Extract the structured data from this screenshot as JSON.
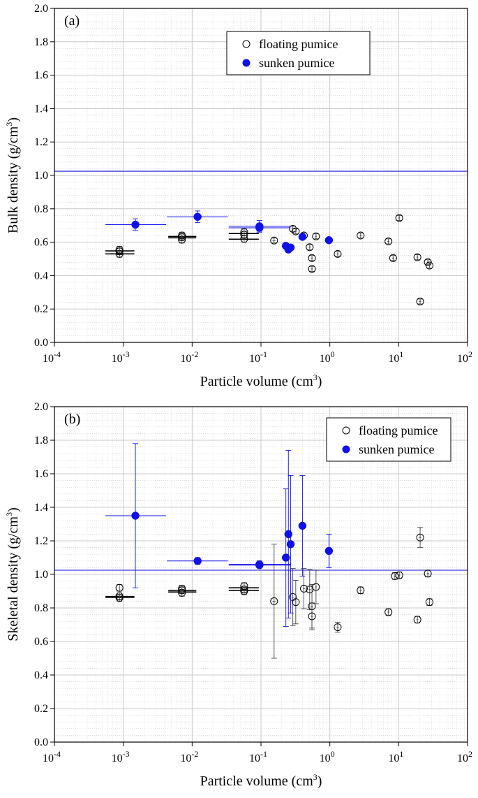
{
  "chart_data": [
    {
      "type": "scatter",
      "panel_label": "(a)",
      "title": "",
      "xlabel": "Particle volume (cm",
      "xlabel_sup": "3",
      "xlabel_close": ")",
      "ylabel": "Bulk density (g/cm",
      "ylabel_sup": "3",
      "ylabel_close": ")",
      "xscale": "log",
      "xlim": [
        0.0001,
        100
      ],
      "ylim": [
        0,
        2.0
      ],
      "x_tick_base": "10",
      "x_tick_exponents": [
        "-4",
        "-3",
        "-2",
        "-1",
        "0",
        "1",
        "2"
      ],
      "y_ticks": [
        "0.0",
        "0.2",
        "0.4",
        "0.6",
        "0.8",
        "1.0",
        "1.2",
        "1.4",
        "1.6",
        "1.8",
        "2.0"
      ],
      "grid": true,
      "reference_line_y": 1.025,
      "legend_position": "top-center",
      "series": [
        {
          "name": "floating pumice",
          "marker": "open-circle",
          "color": "#000000",
          "points": [
            {
              "x": 0.00088,
              "y": 0.53,
              "yerr": 0.02
            },
            {
              "x": 0.00088,
              "y": 0.545,
              "yerr": 0.02
            },
            {
              "x": 0.00088,
              "y": 0.555,
              "yerr": 0.02
            },
            {
              "x": 0.0071,
              "y": 0.615,
              "yerr": 0.02
            },
            {
              "x": 0.0071,
              "y": 0.63,
              "yerr": 0.02
            },
            {
              "x": 0.0071,
              "y": 0.64,
              "yerr": 0.02
            },
            {
              "x": 0.057,
              "y": 0.62,
              "yerr": 0.02
            },
            {
              "x": 0.057,
              "y": 0.645,
              "yerr": 0.02
            },
            {
              "x": 0.057,
              "y": 0.66,
              "yerr": 0.02
            },
            {
              "x": 0.155,
              "y": 0.61,
              "yerr": 0.015,
              "xerr": 0.008
            },
            {
              "x": 0.29,
              "y": 0.68,
              "yerr": 0.015,
              "xerr": 0.012
            },
            {
              "x": 0.32,
              "y": 0.665,
              "yerr": 0.015,
              "xerr": 0.012
            },
            {
              "x": 0.42,
              "y": 0.64,
              "yerr": 0.015,
              "xerr": 0.015
            },
            {
              "x": 0.51,
              "y": 0.57,
              "yerr": 0.015,
              "xerr": 0.018
            },
            {
              "x": 0.55,
              "y": 0.505,
              "yerr": 0.015,
              "xerr": 0.02
            },
            {
              "x": 0.55,
              "y": 0.44,
              "yerr": 0.015,
              "xerr": 0.02
            },
            {
              "x": 0.63,
              "y": 0.635,
              "yerr": 0.015,
              "xerr": 0.02
            },
            {
              "x": 1.3,
              "y": 0.53,
              "yerr": 0.015,
              "xerr": 0.05
            },
            {
              "x": 2.8,
              "y": 0.64,
              "yerr": 0.015,
              "xerr": 0.1
            },
            {
              "x": 7.1,
              "y": 0.605,
              "yerr": 0.015,
              "xerr": 0.25
            },
            {
              "x": 8.3,
              "y": 0.505,
              "yerr": 0.015,
              "xerr": 0.3
            },
            {
              "x": 10.2,
              "y": 0.745,
              "yerr": 0.015,
              "xerr": 0.35
            },
            {
              "x": 18.7,
              "y": 0.51,
              "yerr": 0.015,
              "xerr": 0.6
            },
            {
              "x": 20.5,
              "y": 0.245,
              "yerr": 0.015,
              "xerr": 0.7
            },
            {
              "x": 26.5,
              "y": 0.48,
              "yerr": 0.015,
              "xerr": 0.9
            },
            {
              "x": 28.0,
              "y": 0.46,
              "yerr": 0.015,
              "xerr": 0.9
            }
          ],
          "group_bars": [
            {
              "x": 0.00088,
              "y": 0.53,
              "xlo": 0.00055,
              "xhi": 0.00145
            },
            {
              "x": 0.00088,
              "y": 0.548,
              "xlo": 0.00055,
              "xhi": 0.00145
            },
            {
              "x": 0.0071,
              "y": 0.626,
              "xlo": 0.0045,
              "xhi": 0.0115
            },
            {
              "x": 0.0071,
              "y": 0.634,
              "xlo": 0.0045,
              "xhi": 0.0115
            },
            {
              "x": 0.057,
              "y": 0.618,
              "xlo": 0.034,
              "xhi": 0.093
            },
            {
              "x": 0.057,
              "y": 0.652,
              "xlo": 0.034,
              "xhi": 0.093
            }
          ]
        },
        {
          "name": "sunken pumice",
          "marker": "filled-circle",
          "color": "#1010e8",
          "points": [
            {
              "x": 0.0015,
              "y": 0.705,
              "yerr": 0.035,
              "xlo": 0.00055,
              "xhi": 0.0042
            },
            {
              "x": 0.012,
              "y": 0.752,
              "yerr": 0.035,
              "xlo": 0.0043,
              "xhi": 0.033
            },
            {
              "x": 0.095,
              "y": 0.695,
              "yerr": 0.035,
              "xlo": 0.034,
              "xhi": 0.27
            },
            {
              "x": 0.095,
              "y": 0.686,
              "yerr": 0.02,
              "xlo": 0.034,
              "xhi": 0.27
            },
            {
              "x": 0.23,
              "y": 0.578,
              "yerr": 0.01
            },
            {
              "x": 0.25,
              "y": 0.556,
              "yerr": 0.01
            },
            {
              "x": 0.27,
              "y": 0.568,
              "yerr": 0.01
            },
            {
              "x": 0.4,
              "y": 0.632,
              "yerr": 0.01
            },
            {
              "x": 0.97,
              "y": 0.612,
              "yerr": 0.01
            }
          ]
        }
      ]
    },
    {
      "type": "scatter",
      "panel_label": "(b)",
      "title": "",
      "xlabel": "Particle volume (cm",
      "xlabel_sup": "3",
      "xlabel_close": ")",
      "ylabel": "Skeletal density (g/cm",
      "ylabel_sup": "3",
      "ylabel_close": ")",
      "xscale": "log",
      "xlim": [
        0.0001,
        100
      ],
      "ylim": [
        0,
        2.0
      ],
      "x_tick_base": "10",
      "x_tick_exponents": [
        "-4",
        "-3",
        "-2",
        "-1",
        "0",
        "1",
        "2"
      ],
      "y_ticks": [
        "0.0",
        "0.2",
        "0.4",
        "0.6",
        "0.8",
        "1.0",
        "1.2",
        "1.4",
        "1.6",
        "1.8",
        "2.0"
      ],
      "grid": true,
      "reference_line_y": 1.025,
      "legend_position": "top-right",
      "series": [
        {
          "name": "floating pumice",
          "marker": "open-circle",
          "color": "#000000",
          "points": [
            {
              "x": 0.00088,
              "y": 0.86,
              "yerr": 0.02
            },
            {
              "x": 0.00088,
              "y": 0.87,
              "yerr": 0.02
            },
            {
              "x": 0.00088,
              "y": 0.92,
              "yerr": 0.02
            },
            {
              "x": 0.0071,
              "y": 0.89,
              "yerr": 0.02
            },
            {
              "x": 0.0071,
              "y": 0.905,
              "yerr": 0.02
            },
            {
              "x": 0.0071,
              "y": 0.915,
              "yerr": 0.02
            },
            {
              "x": 0.057,
              "y": 0.9,
              "yerr": 0.02
            },
            {
              "x": 0.057,
              "y": 0.91,
              "yerr": 0.02
            },
            {
              "x": 0.057,
              "y": 0.93,
              "yerr": 0.02
            },
            {
              "x": 0.155,
              "y": 0.84,
              "yerr": 0.34,
              "xerr": 0.008
            },
            {
              "x": 0.29,
              "y": 0.865,
              "yerr": 0.17,
              "xerr": 0.012
            },
            {
              "x": 0.32,
              "y": 0.835,
              "yerr": 0.13,
              "xerr": 0.012
            },
            {
              "x": 0.42,
              "y": 0.915,
              "yerr": 0.12,
              "xerr": 0.015
            },
            {
              "x": 0.51,
              "y": 0.91,
              "yerr": 0.12,
              "xerr": 0.018
            },
            {
              "x": 0.55,
              "y": 0.81,
              "yerr": 0.13,
              "xerr": 0.02
            },
            {
              "x": 0.55,
              "y": 0.75,
              "yerr": 0.08,
              "xerr": 0.02
            },
            {
              "x": 0.63,
              "y": 0.925,
              "yerr": 0.1,
              "xerr": 0.02
            },
            {
              "x": 1.3,
              "y": 0.685,
              "yerr": 0.03,
              "xerr": 0.05
            },
            {
              "x": 2.8,
              "y": 0.905,
              "yerr": 0.02,
              "xerr": 0.1
            },
            {
              "x": 7.1,
              "y": 0.775,
              "yerr": 0.02,
              "xerr": 0.25
            },
            {
              "x": 8.8,
              "y": 0.99,
              "yerr": 0.02,
              "xerr": 0.3
            },
            {
              "x": 10.2,
              "y": 0.995,
              "yerr": 0.02,
              "xerr": 0.35
            },
            {
              "x": 18.7,
              "y": 0.73,
              "yerr": 0.02,
              "xerr": 0.6
            },
            {
              "x": 20.5,
              "y": 1.22,
              "yerr": 0.06,
              "xerr": 0.7
            },
            {
              "x": 26.5,
              "y": 1.005,
              "yerr": 0.02,
              "xerr": 0.9
            },
            {
              "x": 28.0,
              "y": 0.835,
              "yerr": 0.02,
              "xerr": 0.9
            }
          ],
          "group_bars": [
            {
              "x": 0.00088,
              "y": 0.863,
              "xlo": 0.00055,
              "xhi": 0.00145
            },
            {
              "x": 0.00088,
              "y": 0.868,
              "xlo": 0.00055,
              "xhi": 0.00145
            },
            {
              "x": 0.0071,
              "y": 0.895,
              "xlo": 0.0045,
              "xhi": 0.0115
            },
            {
              "x": 0.0071,
              "y": 0.905,
              "xlo": 0.0045,
              "xhi": 0.0115
            },
            {
              "x": 0.057,
              "y": 0.905,
              "xlo": 0.034,
              "xhi": 0.093
            },
            {
              "x": 0.057,
              "y": 0.92,
              "xlo": 0.034,
              "xhi": 0.093
            }
          ]
        },
        {
          "name": "sunken pumice",
          "marker": "filled-circle",
          "color": "#1010e8",
          "points": [
            {
              "x": 0.0015,
              "y": 1.35,
              "yerr": 0.43,
              "xlo": 0.00055,
              "xhi": 0.0042
            },
            {
              "x": 0.012,
              "y": 1.08,
              "yerr": 0.02,
              "xlo": 0.0043,
              "xhi": 0.033
            },
            {
              "x": 0.095,
              "y": 1.06,
              "yerr": 0.02,
              "xlo": 0.034,
              "xhi": 0.27
            },
            {
              "x": 0.095,
              "y": 1.055,
              "yerr": 0.015,
              "xlo": 0.034,
              "xhi": 0.27
            },
            {
              "x": 0.23,
              "y": 1.1,
              "yerr": 0.41
            },
            {
              "x": 0.25,
              "y": 1.24,
              "yerr": 0.5
            },
            {
              "x": 0.27,
              "y": 1.18,
              "yerr": 0.41
            },
            {
              "x": 0.4,
              "y": 1.29,
              "yerr": 0.3
            },
            {
              "x": 0.97,
              "y": 1.14,
              "yerr": 0.1
            }
          ]
        }
      ]
    }
  ]
}
